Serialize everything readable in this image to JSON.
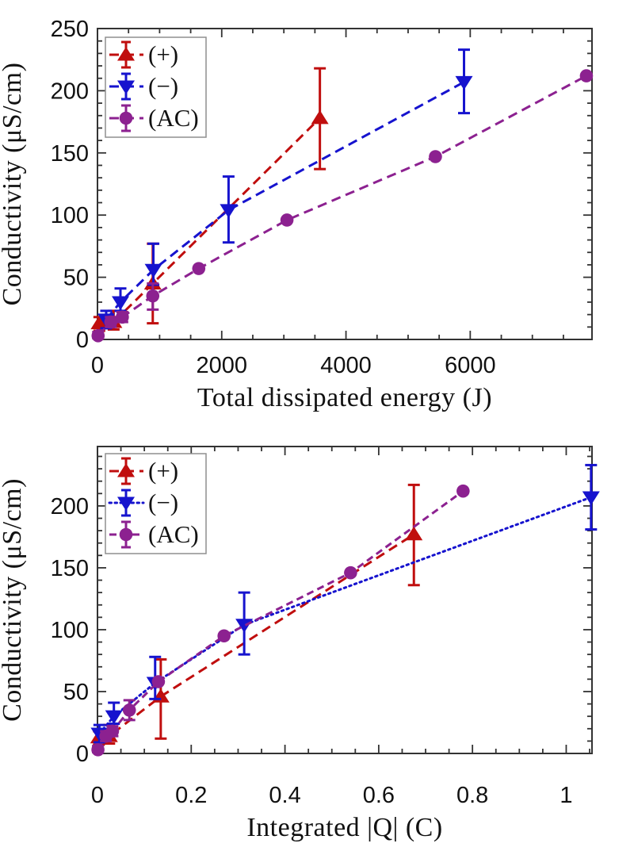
{
  "page": {
    "background": "#ffffff"
  },
  "colors": {
    "pos_red": "#c00e0e",
    "neg_blue": "#1613ce",
    "ac_purple": "#8c2190",
    "frame": "#333333",
    "text": "#111111",
    "legend_border": "#8f8f8f",
    "legend_fill": "#ffffff"
  },
  "chart_data": [
    {
      "type": "line",
      "title": "",
      "xlabel": "Total dissipated energy (J)",
      "ylabel": "Conductivity (μS/cm)",
      "xlim": [
        0,
        7960
      ],
      "ylim": [
        0,
        250
      ],
      "grid": false,
      "legend_position": "top-left",
      "xticks": [
        {
          "v": 0,
          "label": "0"
        },
        {
          "v": 2000,
          "label": "2000"
        },
        {
          "v": 4000,
          "label": "4000"
        },
        {
          "v": 6000,
          "label": "6000"
        }
      ],
      "yticks": [
        {
          "v": 0,
          "label": "0"
        },
        {
          "v": 50,
          "label": "50"
        },
        {
          "v": 100,
          "label": "100"
        },
        {
          "v": 150,
          "label": "150"
        },
        {
          "v": 200,
          "label": "200"
        },
        {
          "v": 250,
          "label": "250"
        }
      ],
      "xminor": 500,
      "yminor": 10,
      "series": [
        {
          "id": "pos",
          "name": "(+)",
          "color": "#c00e0e",
          "marker": "triangle-up",
          "linestyle": "dashed",
          "points": [
            {
              "x": 30,
              "y": 13,
              "lo": 7,
              "hi": 18
            },
            {
              "x": 260,
              "y": 14,
              "lo": 8,
              "hi": 23
            },
            {
              "x": 890,
              "y": 45,
              "lo": 13,
              "hi": 77
            },
            {
              "x": 3580,
              "y": 178,
              "lo": 137,
              "hi": 218
            }
          ]
        },
        {
          "id": "neg",
          "name": "(−)",
          "color": "#1613ce",
          "marker": "triangle-down",
          "linestyle": "dashed",
          "points": [
            {
              "x": 140,
              "y": 16,
              "lo": 9,
              "hi": 23
            },
            {
              "x": 370,
              "y": 30,
              "lo": 23,
              "hi": 41
            },
            {
              "x": 900,
              "y": 56,
              "lo": 44,
              "hi": 77
            },
            {
              "x": 2110,
              "y": 104,
              "lo": 78,
              "hi": 131
            },
            {
              "x": 5900,
              "y": 207,
              "lo": 182,
              "hi": 233
            }
          ]
        },
        {
          "id": "ac",
          "name": "(AC)",
          "color": "#8c2190",
          "marker": "circle",
          "linestyle": "dashed",
          "points": [
            {
              "x": 10,
              "y": 3,
              "lo": 1,
              "hi": 6
            },
            {
              "x": 215,
              "y": 14,
              "lo": 10,
              "hi": 18
            },
            {
              "x": 400,
              "y": 18,
              "lo": 14,
              "hi": 22
            },
            {
              "x": 890,
              "y": 35,
              "lo": 24,
              "hi": 45
            },
            {
              "x": 1630,
              "y": 57,
              "lo": null,
              "hi": null
            },
            {
              "x": 3050,
              "y": 96,
              "lo": null,
              "hi": null
            },
            {
              "x": 5440,
              "y": 147,
              "lo": null,
              "hi": null
            },
            {
              "x": 7870,
              "y": 212,
              "lo": null,
              "hi": null
            }
          ]
        }
      ]
    },
    {
      "type": "line",
      "title": "",
      "xlabel": "Integrated |Q| (C)",
      "ylabel": "Conductivity (μS/cm)",
      "xlim": [
        0,
        1.055
      ],
      "ylim": [
        0,
        248
      ],
      "grid": false,
      "legend_position": "top-left",
      "xticks": [
        {
          "v": 0,
          "label": "0"
        },
        {
          "v": 0.2,
          "label": "0.2"
        },
        {
          "v": 0.4,
          "label": "0.4"
        },
        {
          "v": 0.6,
          "label": "0.6"
        },
        {
          "v": 0.8,
          "label": "0.8"
        },
        {
          "v": 1,
          "label": "1"
        }
      ],
      "yticks": [
        {
          "v": 0,
          "label": "0"
        },
        {
          "v": 50,
          "label": "50"
        },
        {
          "v": 100,
          "label": "100"
        },
        {
          "v": 150,
          "label": "150"
        },
        {
          "v": 200,
          "label": "200"
        }
      ],
      "xminor": 0.05,
      "yminor": 10,
      "series": [
        {
          "id": "pos",
          "name": "(+)",
          "color": "#c00e0e",
          "marker": "triangle-up",
          "linestyle": "dashed",
          "points": [
            {
              "x": 0.003,
              "y": 13,
              "lo": 7,
              "hi": 18
            },
            {
              "x": 0.025,
              "y": 14,
              "lo": 8,
              "hi": 23
            },
            {
              "x": 0.135,
              "y": 46,
              "lo": 12,
              "hi": 76
            },
            {
              "x": 0.675,
              "y": 177,
              "lo": 136,
              "hi": 217
            }
          ]
        },
        {
          "id": "neg",
          "name": "(−)",
          "color": "#1613ce",
          "marker": "triangle-down",
          "linestyle": "dotted",
          "points": [
            {
              "x": 0.004,
              "y": 16,
              "lo": 9,
              "hi": 23
            },
            {
              "x": 0.035,
              "y": 30,
              "lo": 24,
              "hi": 41
            },
            {
              "x": 0.123,
              "y": 57,
              "lo": 44,
              "hi": 78
            },
            {
              "x": 0.313,
              "y": 104,
              "lo": 80,
              "hi": 130
            },
            {
              "x": 1.053,
              "y": 207,
              "lo": 181,
              "hi": 233
            }
          ]
        },
        {
          "id": "ac",
          "name": "(AC)",
          "color": "#8c2190",
          "marker": "circle",
          "linestyle": "short-dashed",
          "points": [
            {
              "x": 0.001,
              "y": 3,
              "lo": 1,
              "hi": 6
            },
            {
              "x": 0.018,
              "y": 14,
              "lo": 10,
              "hi": 18
            },
            {
              "x": 0.032,
              "y": 18,
              "lo": 14,
              "hi": 22
            },
            {
              "x": 0.068,
              "y": 35,
              "lo": 27,
              "hi": 43
            },
            {
              "x": 0.13,
              "y": 58,
              "lo": null,
              "hi": null
            },
            {
              "x": 0.27,
              "y": 95,
              "lo": null,
              "hi": null
            },
            {
              "x": 0.54,
              "y": 146,
              "lo": null,
              "hi": null
            },
            {
              "x": 0.78,
              "y": 212,
              "lo": null,
              "hi": null
            }
          ]
        }
      ]
    }
  ]
}
